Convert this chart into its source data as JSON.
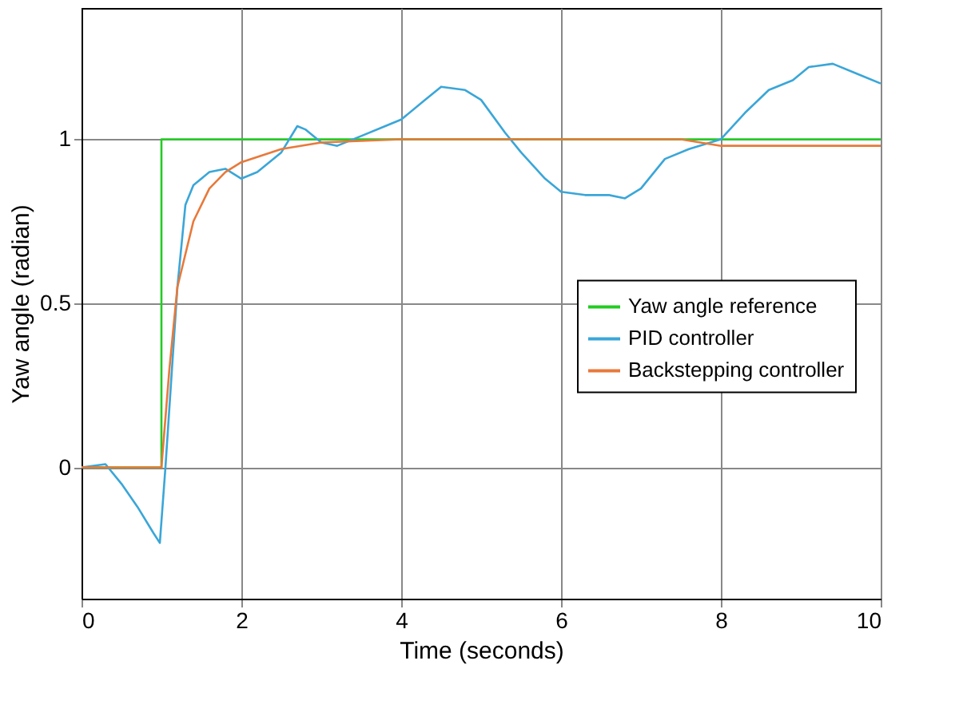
{
  "chart_data": {
    "type": "line",
    "xlabel": "Time (seconds)",
    "ylabel": "Yaw angle (radian)",
    "xlim": [
      0,
      10
    ],
    "ylim": [
      -0.4,
      1.4
    ],
    "xticks": [
      0,
      2,
      4,
      6,
      8,
      10
    ],
    "yticks": [
      0,
      0.5,
      1
    ],
    "grid": true,
    "legend": "right",
    "line_style": "solid",
    "marker": "none",
    "series": [
      {
        "name": "Yaw angle reference",
        "color": "#22cc22",
        "x": [
          0,
          1,
          1,
          10
        ],
        "values": [
          0,
          0,
          1,
          1
        ]
      },
      {
        "name": "PID controller",
        "color": "#3aa6d8",
        "x": [
          0,
          0.3,
          0.5,
          0.7,
          0.9,
          0.98,
          1.05,
          1.2,
          1.3,
          1.4,
          1.6,
          1.8,
          2.0,
          2.2,
          2.5,
          2.7,
          2.8,
          3.0,
          3.2,
          3.5,
          3.8,
          4.0,
          4.3,
          4.5,
          4.8,
          5.0,
          5.3,
          5.5,
          5.8,
          6.0,
          6.3,
          6.6,
          6.8,
          7.0,
          7.3,
          7.6,
          8.0,
          8.3,
          8.6,
          8.9,
          9.1,
          9.4,
          9.7,
          10
        ],
        "values": [
          0,
          0.01,
          -0.05,
          -0.12,
          -0.2,
          -0.23,
          0.0,
          0.55,
          0.8,
          0.86,
          0.9,
          0.91,
          0.88,
          0.9,
          0.96,
          1.04,
          1.03,
          0.99,
          0.98,
          1.01,
          1.04,
          1.06,
          1.12,
          1.16,
          1.15,
          1.12,
          1.02,
          0.96,
          0.88,
          0.84,
          0.83,
          0.83,
          0.82,
          0.85,
          0.94,
          0.97,
          1.0,
          1.08,
          1.15,
          1.18,
          1.22,
          1.23,
          1.2,
          1.17
        ]
      },
      {
        "name": "Backstepping controller",
        "color": "#e8793a",
        "x": [
          0,
          1.0,
          1.1,
          1.2,
          1.4,
          1.6,
          1.8,
          2.0,
          2.5,
          3.0,
          4.0,
          7.5,
          8.0,
          10
        ],
        "values": [
          0,
          0,
          0.3,
          0.55,
          0.75,
          0.85,
          0.9,
          0.93,
          0.97,
          0.99,
          1.0,
          1.0,
          0.98,
          0.98
        ]
      }
    ]
  }
}
